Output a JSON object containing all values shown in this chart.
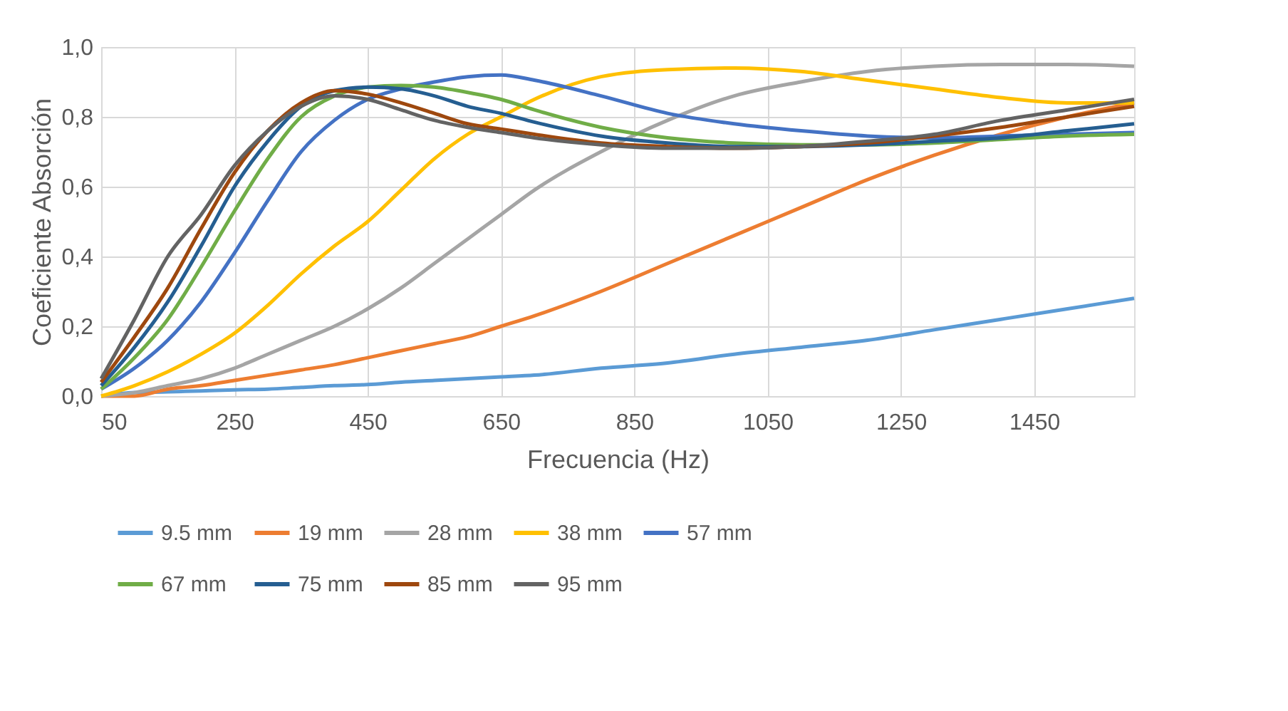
{
  "chart_data": {
    "type": "line",
    "xlabel": "Frecuencia (Hz)",
    "ylabel": "Coeficiente Absorción",
    "x": [
      50,
      100,
      150,
      200,
      250,
      300,
      350,
      400,
      450,
      500,
      550,
      600,
      650,
      700,
      800,
      900,
      1000,
      1100,
      1200,
      1300,
      1400,
      1500,
      1600
    ],
    "series": [
      {
        "name": "9.5 mm",
        "color": "#5b9bd5",
        "values": [
          0.0,
          0.01,
          0.012,
          0.015,
          0.018,
          0.02,
          0.025,
          0.03,
          0.033,
          0.04,
          0.045,
          0.05,
          0.055,
          0.06,
          0.08,
          0.095,
          0.12,
          0.14,
          0.16,
          0.19,
          0.22,
          0.25,
          0.28
        ]
      },
      {
        "name": "19 mm",
        "color": "#ed7d31",
        "values": [
          0.0,
          0.0,
          0.02,
          0.03,
          0.045,
          0.06,
          0.075,
          0.09,
          0.11,
          0.13,
          0.15,
          0.17,
          0.2,
          0.23,
          0.3,
          0.38,
          0.46,
          0.54,
          0.62,
          0.69,
          0.75,
          0.8,
          0.84
        ]
      },
      {
        "name": "28 mm",
        "color": "#a5a5a5",
        "values": [
          0.0,
          0.01,
          0.03,
          0.05,
          0.08,
          0.12,
          0.16,
          0.2,
          0.25,
          0.31,
          0.38,
          0.45,
          0.52,
          0.59,
          0.7,
          0.79,
          0.86,
          0.9,
          0.93,
          0.945,
          0.95,
          0.95,
          0.945
        ]
      },
      {
        "name": "38 mm",
        "color": "#ffc000",
        "values": [
          0.0,
          0.03,
          0.07,
          0.12,
          0.18,
          0.26,
          0.35,
          0.43,
          0.5,
          0.59,
          0.68,
          0.75,
          0.8,
          0.85,
          0.915,
          0.935,
          0.94,
          0.93,
          0.905,
          0.88,
          0.855,
          0.84,
          0.84
        ]
      },
      {
        "name": "57 mm",
        "color": "#4472c4",
        "values": [
          0.02,
          0.08,
          0.16,
          0.27,
          0.41,
          0.56,
          0.7,
          0.79,
          0.85,
          0.88,
          0.9,
          0.915,
          0.92,
          0.905,
          0.86,
          0.81,
          0.78,
          0.76,
          0.745,
          0.74,
          0.745,
          0.75,
          0.755
        ]
      },
      {
        "name": "67 mm",
        "color": "#70ad47",
        "values": [
          0.02,
          0.11,
          0.22,
          0.37,
          0.53,
          0.68,
          0.8,
          0.86,
          0.885,
          0.89,
          0.885,
          0.87,
          0.85,
          0.82,
          0.77,
          0.74,
          0.725,
          0.72,
          0.72,
          0.725,
          0.735,
          0.745,
          0.75
        ]
      },
      {
        "name": "75 mm",
        "color": "#255e91",
        "values": [
          0.03,
          0.14,
          0.27,
          0.43,
          0.6,
          0.73,
          0.83,
          0.875,
          0.885,
          0.88,
          0.86,
          0.83,
          0.81,
          0.785,
          0.745,
          0.725,
          0.715,
          0.715,
          0.72,
          0.73,
          0.74,
          0.76,
          0.78
        ]
      },
      {
        "name": "85 mm",
        "color": "#9e480e",
        "values": [
          0.04,
          0.17,
          0.31,
          0.48,
          0.64,
          0.76,
          0.84,
          0.875,
          0.865,
          0.84,
          0.81,
          0.78,
          0.765,
          0.75,
          0.725,
          0.715,
          0.71,
          0.715,
          0.725,
          0.745,
          0.77,
          0.8,
          0.83
        ]
      },
      {
        "name": "95 mm",
        "color": "#636363",
        "values": [
          0.05,
          0.22,
          0.4,
          0.52,
          0.66,
          0.76,
          0.83,
          0.86,
          0.85,
          0.82,
          0.79,
          0.77,
          0.755,
          0.74,
          0.72,
          0.71,
          0.71,
          0.715,
          0.73,
          0.75,
          0.79,
          0.82,
          0.85
        ]
      }
    ],
    "xlim": [
      50,
      1600
    ],
    "xticks": [
      50,
      250,
      450,
      650,
      850,
      1050,
      1250,
      1450
    ],
    "ylim": [
      0,
      1
    ],
    "yticks": [
      {
        "value": 0,
        "label": "0,0"
      },
      {
        "value": 0.2,
        "label": "0,2"
      },
      {
        "value": 0.4,
        "label": "0,4"
      },
      {
        "value": 0.6,
        "label": "0,6"
      },
      {
        "value": 0.8,
        "label": "0,8"
      },
      {
        "value": 1,
        "label": "1,0"
      }
    ],
    "grid": true,
    "legend": "bottom",
    "marker": "none",
    "line_style": "solid"
  }
}
